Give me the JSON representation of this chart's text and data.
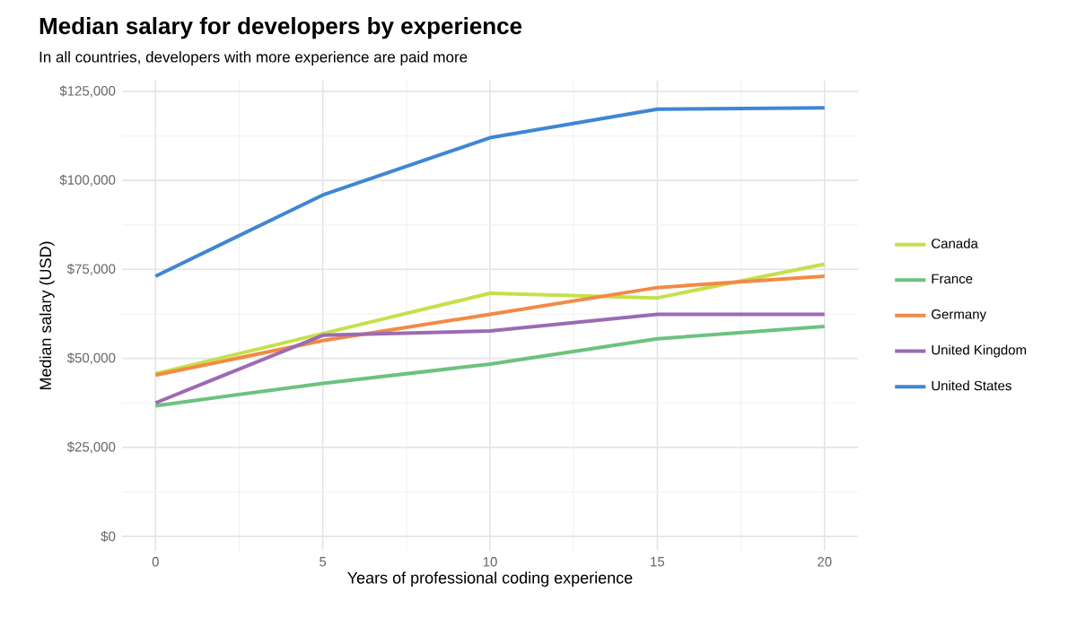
{
  "chart_data": {
    "type": "line",
    "title": "Median salary for developers by experience",
    "subtitle": "In all countries, developers with more experience are paid more",
    "xlabel": "Years of professional coding experience",
    "ylabel": "Median salary (USD)",
    "x": [
      0,
      5,
      10,
      15,
      20
    ],
    "series": [
      {
        "name": "Canada",
        "color": "#c5e04a",
        "values": [
          45700,
          57000,
          68300,
          67000,
          76500
        ]
      },
      {
        "name": "France",
        "color": "#6cc27f",
        "values": [
          36700,
          43000,
          48400,
          55500,
          59000
        ]
      },
      {
        "name": "Germany",
        "color": "#f28a45",
        "values": [
          45300,
          55000,
          62400,
          69900,
          73100
        ]
      },
      {
        "name": "United Kingdom",
        "color": "#9b6bb3",
        "values": [
          37500,
          56500,
          57700,
          62400,
          62400
        ]
      },
      {
        "name": "United States",
        "color": "#3f86d4",
        "values": [
          73100,
          95900,
          112000,
          120000,
          120400
        ]
      }
    ],
    "xlim": [
      -1,
      21
    ],
    "ylim": [
      -4000,
      128000
    ],
    "xticks": [
      0,
      5,
      10,
      15,
      20
    ],
    "yticks": [
      {
        "value": 0,
        "label": "$0"
      },
      {
        "value": 25000,
        "label": "$25,000"
      },
      {
        "value": 50000,
        "label": "$50,000"
      },
      {
        "value": 75000,
        "label": "$75,000"
      },
      {
        "value": 100000,
        "label": "$100,000"
      },
      {
        "value": 125000,
        "label": "$125,000"
      }
    ],
    "grid": true,
    "legend": "right",
    "marker": "none",
    "line_style": "solid"
  }
}
